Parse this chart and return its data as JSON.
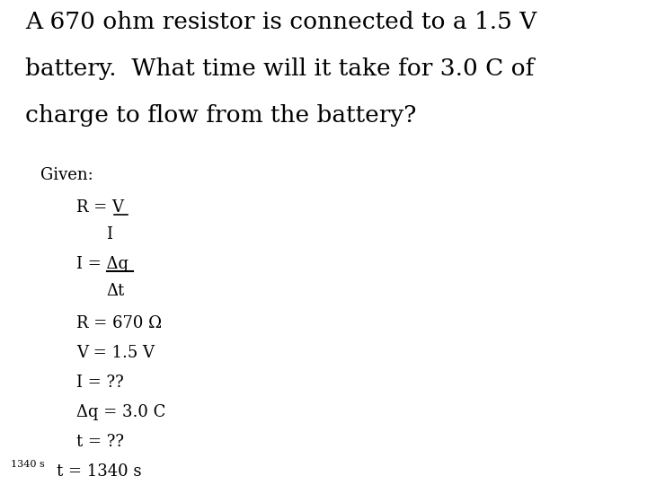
{
  "background_color": "#ffffff",
  "text_color": "#000000",
  "title_lines": [
    "A 670 ohm resistor is connected to a 1.5 V",
    "battery.  What time will it take for 3.0 C of",
    "charge to flow from the battery?"
  ],
  "title_fontsize": 19,
  "body_fontsize": 13,
  "given_fontsize": 13,
  "footer_fontsize": 8,
  "font_family": "DejaVu Serif",
  "footer_text": "1340 s"
}
